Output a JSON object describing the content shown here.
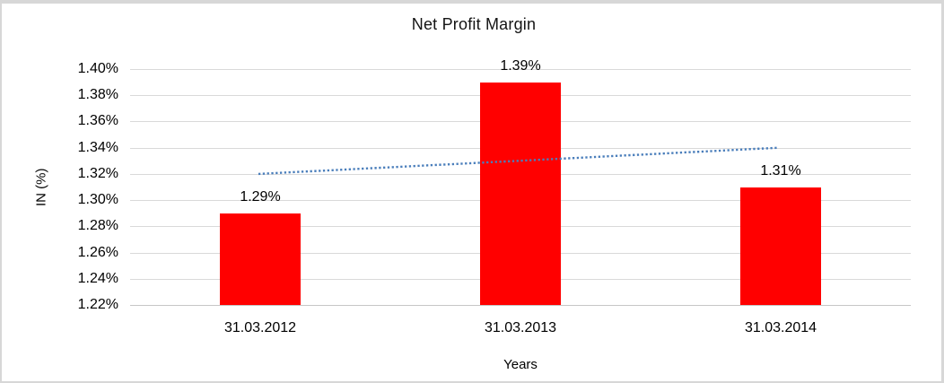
{
  "chart_data": {
    "type": "bar",
    "title": "Net Profit Margin",
    "xlabel": "Years",
    "ylabel": "IN (%)",
    "categories": [
      "31.03.2012",
      "31.03.2013",
      "31.03.2014"
    ],
    "series": [
      {
        "name": "Net Profit Margin",
        "values": [
          1.29,
          1.39,
          1.31
        ]
      }
    ],
    "data_labels": [
      "1.29%",
      "1.39%",
      "1.31%"
    ],
    "y_ticks": [
      "1.40%",
      "1.38%",
      "1.36%",
      "1.34%",
      "1.32%",
      "1.30%",
      "1.28%",
      "1.26%",
      "1.24%",
      "1.22%"
    ],
    "ylim": [
      1.22,
      1.4
    ],
    "y_tick_step": 0.02,
    "grid": true,
    "legend": "none",
    "bar_color": "#ff0000",
    "trendline": {
      "style": "dotted",
      "color": "#4a7ebb",
      "start_value": 1.32,
      "end_value": 1.34
    }
  }
}
